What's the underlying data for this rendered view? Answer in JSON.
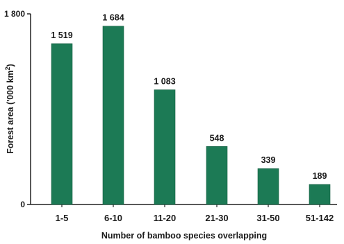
{
  "chart_data": {
    "type": "bar",
    "categories": [
      "1-5",
      "6-10",
      "11-20",
      "21-30",
      "31-50",
      "51-142"
    ],
    "values": [
      1519,
      1684,
      1083,
      548,
      339,
      189
    ],
    "data_labels": [
      "1 519",
      "1 684",
      "1 083",
      "548",
      "339",
      "189"
    ],
    "title": "",
    "xlabel": "Number of bamboo species overlapping",
    "ylabel": "Forest area ('000 km",
    "ylabel_superscript": "2",
    "ylabel_close": ")",
    "ylim": [
      0,
      1800
    ],
    "yticks": [
      0,
      1800
    ],
    "ytick_labels": [
      "0",
      "1 800"
    ],
    "grid": false,
    "legend": "none",
    "colors": {
      "bar": "#1c7a55",
      "bar_edge": "#145c40",
      "axis": "#222222"
    }
  }
}
